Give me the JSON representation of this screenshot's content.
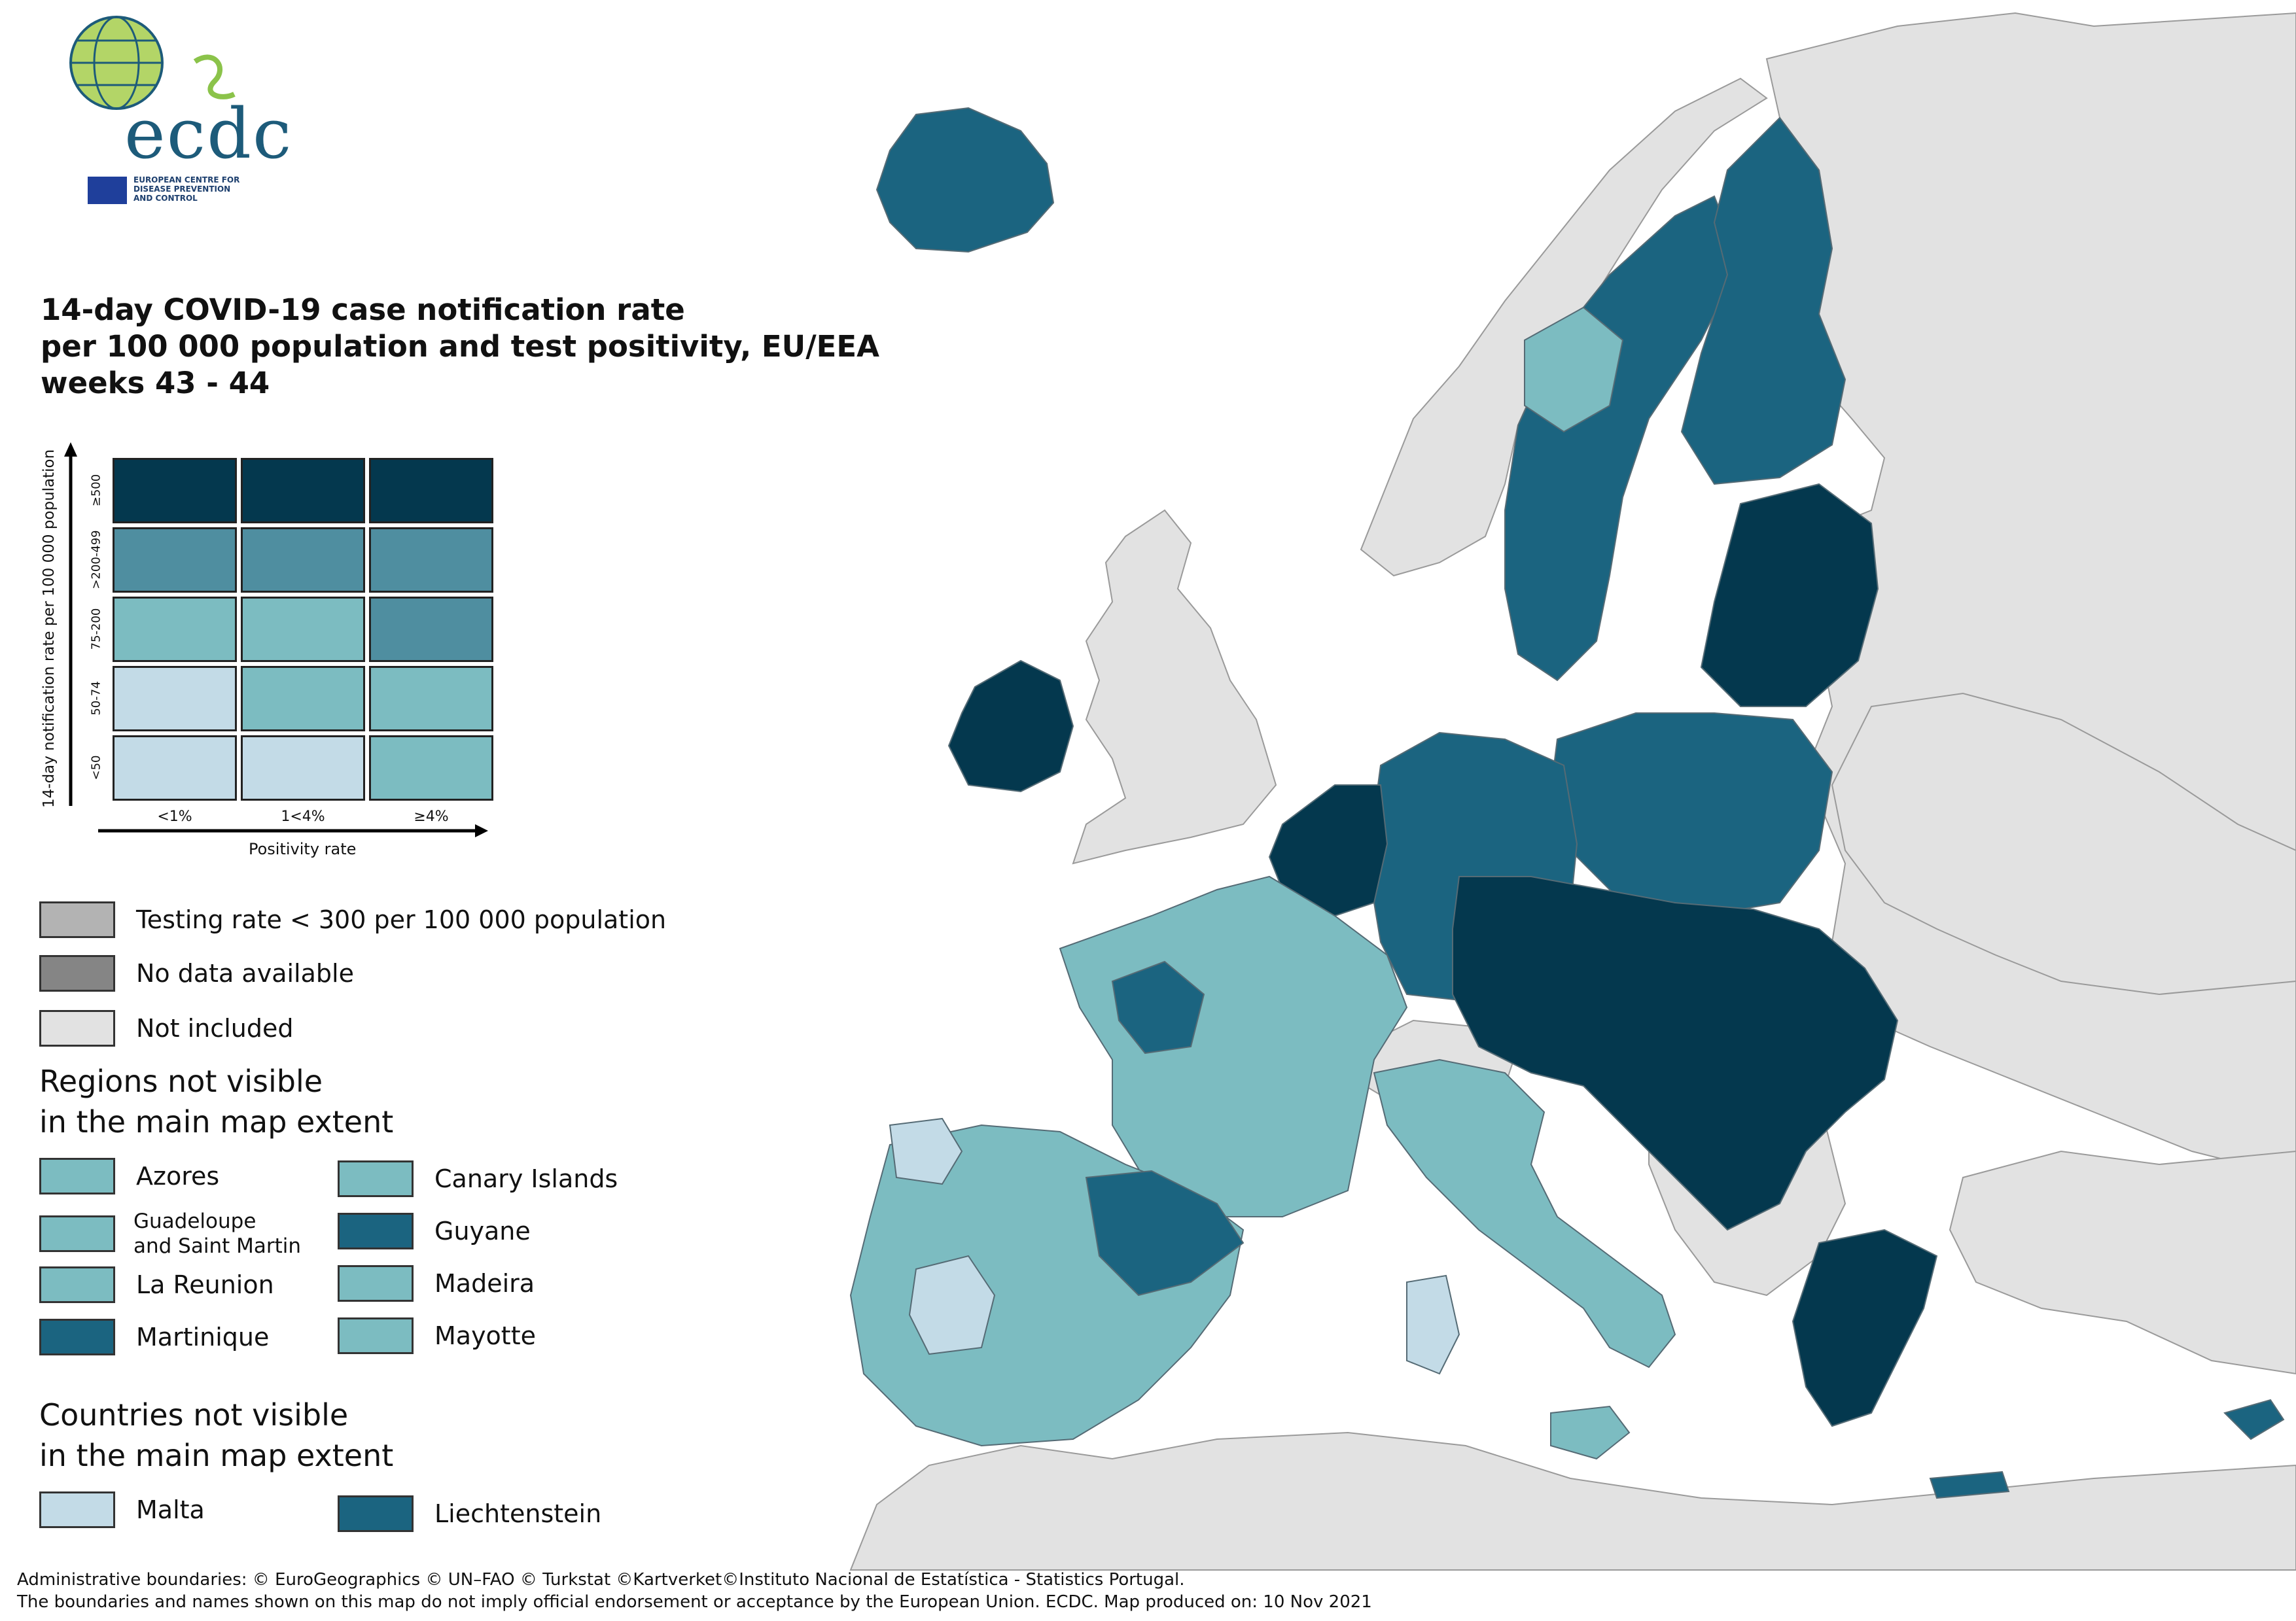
{
  "logo": {
    "wordmark": "ecdc",
    "subtitle_lines": [
      "EUROPEAN CENTRE FOR",
      "DISEASE PREVENTION",
      "AND CONTROL"
    ]
  },
  "title": {
    "line1": "14-day COVID-19 case notification rate",
    "line2": "per 100 000 population and test positivity, EU/EEA",
    "line3": "weeks 43 - 44"
  },
  "matrix": {
    "y_axis_title": "14-day notification rate per 100 000 population",
    "x_axis_title": "Positivity rate",
    "rows": [
      {
        "label": "≥500",
        "colors": [
          "#04384e",
          "#04384e",
          "#04384e"
        ]
      },
      {
        "label": ">200-499",
        "colors": [
          "#4f8ea0",
          "#4f8ea0",
          "#4f8ea0"
        ]
      },
      {
        "label": "75-200",
        "colors": [
          "#7cbcc1",
          "#7cbcc1",
          "#4f8ea0"
        ]
      },
      {
        "label": "50-74",
        "colors": [
          "#c3dbe7",
          "#7cbcc1",
          "#7cbcc1"
        ]
      },
      {
        "label": "<50",
        "colors": [
          "#c3dbe7",
          "#c3dbe7",
          "#7cbcc1"
        ]
      }
    ],
    "columns": [
      "<1%",
      "1<4%",
      "≥4%"
    ]
  },
  "legend": {
    "testing_rate": {
      "label": "Testing rate < 300 per 100 000 population",
      "color": "#b3b3b3"
    },
    "no_data": {
      "label": "No data available",
      "color": "#858585"
    },
    "not_included": {
      "label": "Not included",
      "color": "#e2e2e2"
    }
  },
  "regions_heading": [
    "Regions not visible",
    "in the main map extent"
  ],
  "regions": {
    "azores": {
      "label": "Azores",
      "color": "#7cbcc1"
    },
    "canary": {
      "label": "Canary Islands",
      "color": "#7cbcc1"
    },
    "guadeloupe_line1": "Guadeloupe",
    "guadeloupe_line2": "and Saint Martin",
    "guadeloupe_color": "#7cbcc1",
    "guyane": {
      "label": "Guyane",
      "color": "#1b6480"
    },
    "reunion": {
      "label": "La Reunion",
      "color": "#7cbcc1"
    },
    "madeira": {
      "label": "Madeira",
      "color": "#7cbcc1"
    },
    "martinique": {
      "label": "Martinique",
      "color": "#1b6480"
    },
    "mayotte": {
      "label": "Mayotte",
      "color": "#7cbcc1"
    }
  },
  "countries_heading": [
    "Countries not visible",
    "in the main map extent"
  ],
  "countries": {
    "malta": {
      "label": "Malta",
      "color": "#c3dbe7"
    },
    "liechtenstein": {
      "label": "Liechtenstein",
      "color": "#1b6480"
    }
  },
  "footer": {
    "line1": "Administrative boundaries: © EuroGeographics © UN–FAO © Turkstat ©Kartverket©Instituto Nacional de Estatística - Statistics Portugal.",
    "line2": "The boundaries and names shown on this map do not imply official endorsement or acceptance by the European Union. ECDC. Map produced on: 10 Nov 2021"
  },
  "map_colors": {
    "sea": "#ffffff",
    "not_included": "#e2e2e2",
    "dark": "#04384e",
    "mid": "#1b6480",
    "mid_light": "#4f8ea0",
    "light": "#7cbcc1",
    "pale": "#c3dbe7",
    "border": "#556b75"
  }
}
